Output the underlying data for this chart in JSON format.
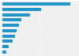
{
  "values": [
    0.915,
    0.525,
    0.37,
    0.25,
    0.22,
    0.19,
    0.17,
    0.14,
    0.085,
    0.05
  ],
  "bar_color": "#2196c8",
  "background_color": "#f0f0f0",
  "plot_background": "#f0f0f0",
  "grid_color": "#ffffff",
  "border_color": "#cccccc",
  "xlim": [
    0,
    1.0
  ],
  "bar_height": 0.6,
  "num_bars": 10
}
